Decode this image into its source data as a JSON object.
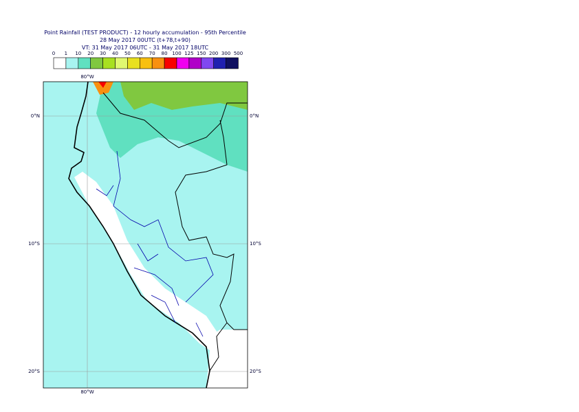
{
  "header": {
    "title": "Point Rainfall (TEST PRODUCT) - 12 hourly accumulation - 95th Percentile",
    "run": "28 May 2017 00UTC (t+78,t+90)",
    "valid": "VT: 31 May 2017 06UTC - 31 May 2017 18UTC"
  },
  "legend": {
    "labels": [
      "0",
      "1",
      "10",
      "20",
      "30",
      "40",
      "50",
      "60",
      "70",
      "80",
      "100",
      "125",
      "150",
      "200",
      "300",
      "500"
    ],
    "colors": [
      "#ffffff",
      "#a8f4f0",
      "#60e0c0",
      "#80c840",
      "#a8e020",
      "#e0f870",
      "#e8e020",
      "#f8c010",
      "#f89010",
      "#f80000",
      "#f000f0",
      "#b000c8",
      "#8048f0",
      "#2020b0",
      "#101060"
    ]
  },
  "map": {
    "lon_label": "80°W",
    "lat_labels": [
      "0°N",
      "10°S",
      "20°S"
    ]
  }
}
